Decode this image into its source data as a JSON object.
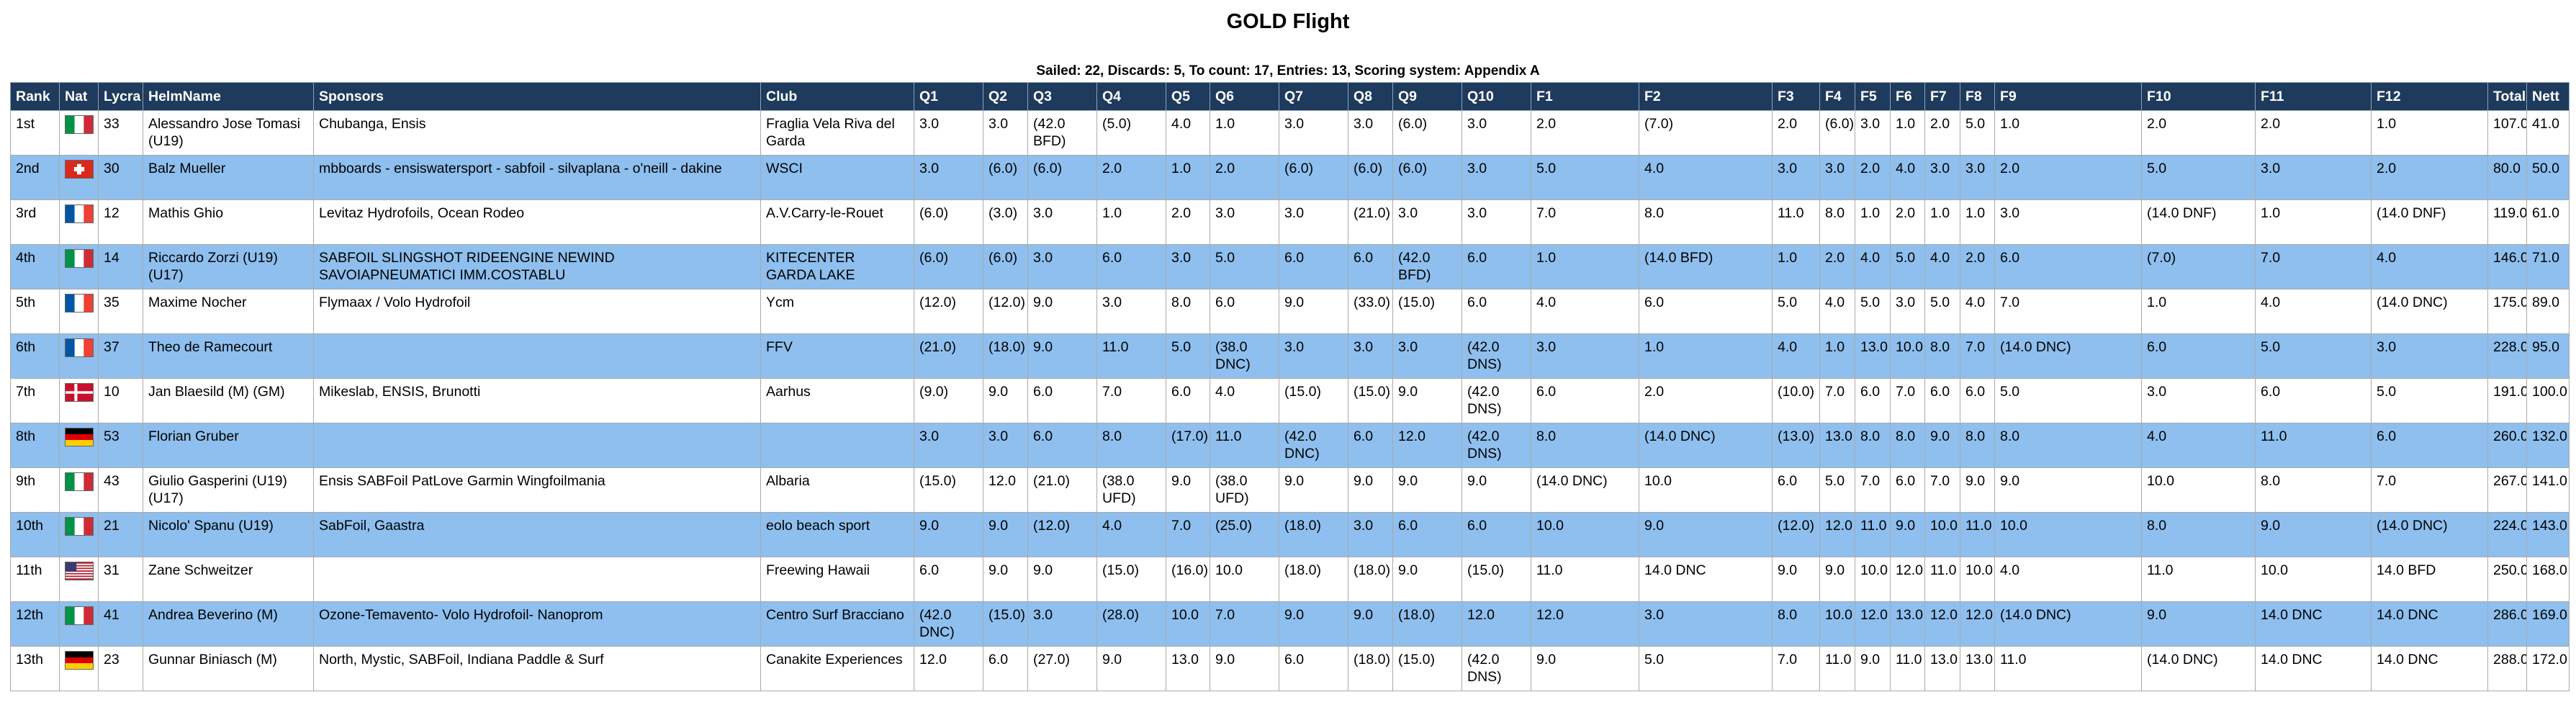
{
  "title": "GOLD Flight",
  "subtitle": "Sailed: 22, Discards: 5, To count: 17, Entries: 13, Scoring system: Appendix A",
  "headers": [
    "Rank",
    "Nat",
    "Lycra",
    "HelmName",
    "Sponsors",
    "Club",
    "Q1",
    "Q2",
    "Q3",
    "Q4",
    "Q5",
    "Q6",
    "Q7",
    "Q8",
    "Q9",
    "Q10",
    "F1",
    "F2",
    "F3",
    "F4",
    "F5",
    "F6",
    "F7",
    "F8",
    "F9",
    "F10",
    "F11",
    "F12",
    "Total",
    "Nett"
  ],
  "rows": [
    {
      "rank": "1st",
      "flag": "italy",
      "lycra": "33",
      "helm": "Alessandro Jose Tomasi (U19)",
      "sponsors": "Chubanga, Ensis",
      "club": "Fraglia Vela Riva del Garda",
      "scores": [
        "3.0",
        "3.0",
        "(42.0 BFD)",
        "(5.0)",
        "4.0",
        "1.0",
        "3.0",
        "3.0",
        "(6.0)",
        "3.0",
        "2.0",
        "(7.0)",
        "2.0",
        "(6.0)",
        "3.0",
        "1.0",
        "2.0",
        "5.0",
        "1.0",
        "2.0",
        "2.0",
        "1.0"
      ],
      "total": "107.0",
      "nett": "41.0"
    },
    {
      "rank": "2nd",
      "flag": "switzerland",
      "lycra": "30",
      "helm": "Balz Mueller",
      "sponsors": "mbboards - ensiswatersport - sabfoil - silvaplana - o'neill - dakine",
      "club": "WSCI",
      "scores": [
        "3.0",
        "(6.0)",
        "(6.0)",
        "2.0",
        "1.0",
        "2.0",
        "(6.0)",
        "(6.0)",
        "(6.0)",
        "3.0",
        "5.0",
        "4.0",
        "3.0",
        "3.0",
        "2.0",
        "4.0",
        "3.0",
        "3.0",
        "2.0",
        "5.0",
        "3.0",
        "2.0"
      ],
      "total": "80.0",
      "nett": "50.0"
    },
    {
      "rank": "3rd",
      "flag": "france",
      "lycra": "12",
      "helm": "Mathis Ghio",
      "sponsors": "Levitaz Hydrofoils, Ocean Rodeo",
      "club": "A.V.Carry-le-Rouet",
      "scores": [
        "(6.0)",
        "(3.0)",
        "3.0",
        "1.0",
        "2.0",
        "3.0",
        "3.0",
        "(21.0)",
        "3.0",
        "3.0",
        "7.0",
        "8.0",
        "11.0",
        "8.0",
        "1.0",
        "2.0",
        "1.0",
        "1.0",
        "3.0",
        "(14.0 DNF)",
        "1.0",
        "(14.0 DNF)"
      ],
      "total": "119.0",
      "nett": "61.0"
    },
    {
      "rank": "4th",
      "flag": "italy",
      "lycra": "14",
      "helm": "Riccardo Zorzi (U19) (U17)",
      "sponsors": "SABFOIL SLINGSHOT RIDEENGINE NEWIND SAVOIAPNEUMATICI IMM.COSTABLU",
      "club": "KITECENTER GARDA LAKE",
      "scores": [
        "(6.0)",
        "(6.0)",
        "3.0",
        "6.0",
        "3.0",
        "5.0",
        "6.0",
        "6.0",
        "(42.0 BFD)",
        "6.0",
        "1.0",
        "(14.0 BFD)",
        "1.0",
        "2.0",
        "4.0",
        "5.0",
        "4.0",
        "2.0",
        "6.0",
        "(7.0)",
        "7.0",
        "4.0"
      ],
      "total": "146.0",
      "nett": "71.0"
    },
    {
      "rank": "5th",
      "flag": "france",
      "lycra": "35",
      "helm": "Maxime Nocher",
      "sponsors": "Flymaax / Volo Hydrofoil",
      "club": "Ycm",
      "scores": [
        "(12.0)",
        "(12.0)",
        "9.0",
        "3.0",
        "8.0",
        "6.0",
        "9.0",
        "(33.0)",
        "(15.0)",
        "6.0",
        "4.0",
        "6.0",
        "5.0",
        "4.0",
        "5.0",
        "3.0",
        "5.0",
        "4.0",
        "7.0",
        "1.0",
        "4.0",
        "(14.0 DNC)"
      ],
      "total": "175.0",
      "nett": "89.0"
    },
    {
      "rank": "6th",
      "flag": "france",
      "lycra": "37",
      "helm": "Theo de Ramecourt",
      "sponsors": "",
      "club": "FFV",
      "scores": [
        "(21.0)",
        "(18.0)",
        "9.0",
        "11.0",
        "5.0",
        "(38.0 DNC)",
        "3.0",
        "3.0",
        "3.0",
        "(42.0 DNS)",
        "3.0",
        "1.0",
        "4.0",
        "1.0",
        "13.0",
        "10.0",
        "8.0",
        "7.0",
        "(14.0 DNC)",
        "6.0",
        "5.0",
        "3.0"
      ],
      "total": "228.0",
      "nett": "95.0"
    },
    {
      "rank": "7th",
      "flag": "denmark",
      "lycra": "10",
      "helm": "Jan Blaesild (M) (GM)",
      "sponsors": "Mikeslab, ENSIS, Brunotti",
      "club": "Aarhus",
      "scores": [
        "(9.0)",
        "9.0",
        "6.0",
        "7.0",
        "6.0",
        "4.0",
        "(15.0)",
        "(15.0)",
        "9.0",
        "(42.0 DNS)",
        "6.0",
        "2.0",
        "(10.0)",
        "7.0",
        "6.0",
        "7.0",
        "6.0",
        "6.0",
        "5.0",
        "3.0",
        "6.0",
        "5.0"
      ],
      "total": "191.0",
      "nett": "100.0"
    },
    {
      "rank": "8th",
      "flag": "germany",
      "lycra": "53",
      "helm": "Florian Gruber",
      "sponsors": "",
      "club": "",
      "scores": [
        "3.0",
        "3.0",
        "6.0",
        "8.0",
        "(17.0)",
        "11.0",
        "(42.0 DNC)",
        "6.0",
        "12.0",
        "(42.0 DNS)",
        "8.0",
        "(14.0 DNC)",
        "(13.0)",
        "13.0",
        "8.0",
        "8.0",
        "9.0",
        "8.0",
        "8.0",
        "4.0",
        "11.0",
        "6.0"
      ],
      "total": "260.0",
      "nett": "132.0"
    },
    {
      "rank": "9th",
      "flag": "italy",
      "lycra": "43",
      "helm": "Giulio Gasperini (U19) (U17)",
      "sponsors": "Ensis SABFoil PatLove Garmin Wingfoilmania",
      "club": "Albaria",
      "scores": [
        "(15.0)",
        "12.0",
        "(21.0)",
        "(38.0 UFD)",
        "9.0",
        "(38.0 UFD)",
        "9.0",
        "9.0",
        "9.0",
        "9.0",
        "(14.0 DNC)",
        "10.0",
        "6.0",
        "5.0",
        "7.0",
        "6.0",
        "7.0",
        "9.0",
        "9.0",
        "10.0",
        "8.0",
        "7.0"
      ],
      "total": "267.0",
      "nett": "141.0"
    },
    {
      "rank": "10th",
      "flag": "italy",
      "lycra": "21",
      "helm": "Nicolo' Spanu (U19)",
      "sponsors": "SabFoil, Gaastra",
      "club": "eolo beach sport",
      "scores": [
        "9.0",
        "9.0",
        "(12.0)",
        "4.0",
        "7.0",
        "(25.0)",
        "(18.0)",
        "3.0",
        "6.0",
        "6.0",
        "10.0",
        "9.0",
        "(12.0)",
        "12.0",
        "11.0",
        "9.0",
        "10.0",
        "11.0",
        "10.0",
        "8.0",
        "9.0",
        "(14.0 DNC)"
      ],
      "total": "224.0",
      "nett": "143.0"
    },
    {
      "rank": "11th",
      "flag": "usa",
      "lycra": "31",
      "helm": "Zane Schweitzer",
      "sponsors": "",
      "club": "Freewing Hawaii",
      "scores": [
        "6.0",
        "9.0",
        "9.0",
        "(15.0)",
        "(16.0)",
        "10.0",
        "(18.0)",
        "(18.0)",
        "9.0",
        "(15.0)",
        "11.0",
        "14.0 DNC",
        "9.0",
        "9.0",
        "10.0",
        "12.0",
        "11.0",
        "10.0",
        "4.0",
        "11.0",
        "10.0",
        "14.0 BFD"
      ],
      "total": "250.0",
      "nett": "168.0"
    },
    {
      "rank": "12th",
      "flag": "italy",
      "lycra": "41",
      "helm": "Andrea Beverino (M)",
      "sponsors": "Ozone-Temavento- Volo Hydrofoil- Nanoprom",
      "club": "Centro Surf Bracciano",
      "scores": [
        "(42.0 DNC)",
        "(15.0)",
        "3.0",
        "(28.0)",
        "10.0",
        "7.0",
        "9.0",
        "9.0",
        "(18.0)",
        "12.0",
        "12.0",
        "3.0",
        "8.0",
        "10.0",
        "12.0",
        "13.0",
        "12.0",
        "12.0",
        "(14.0 DNC)",
        "9.0",
        "14.0 DNC",
        "14.0 DNC"
      ],
      "total": "286.0",
      "nett": "169.0"
    },
    {
      "rank": "13th",
      "flag": "germany",
      "lycra": "23",
      "helm": "Gunnar Biniasch (M)",
      "sponsors": "North, Mystic, SABFoil, Indiana Paddle & Surf",
      "club": "Canakite Experiences",
      "scores": [
        "12.0",
        "6.0",
        "(27.0)",
        "9.0",
        "13.0",
        "9.0",
        "6.0",
        "(18.0)",
        "(15.0)",
        "(42.0 DNS)",
        "9.0",
        "5.0",
        "7.0",
        "11.0",
        "9.0",
        "11.0",
        "13.0",
        "13.0",
        "11.0",
        "(14.0 DNC)",
        "14.0 DNC",
        "14.0 DNC"
      ],
      "total": "288.0",
      "nett": "172.0"
    }
  ]
}
